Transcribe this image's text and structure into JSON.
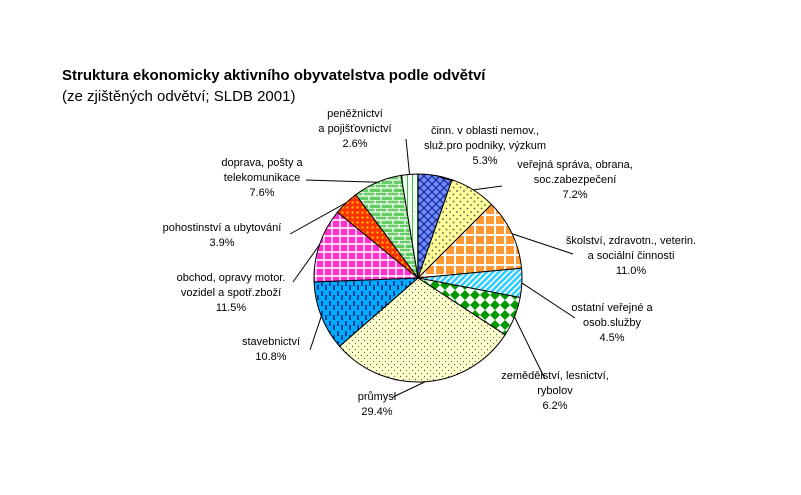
{
  "chart_data": {
    "type": "pie",
    "title": "Struktura ekonomicky aktivního obyvatelstva podle odvětví",
    "subtitle": " (ze zjištěných odvětví; SLDB 2001)",
    "slices": [
      {
        "lines": [
          "činn. v oblasti nemov.,",
          "služ.pro podniky, výzkum"
        ],
        "value": 5.3,
        "value_label": "5.3%",
        "color": "#6f8cff",
        "pattern": "crosshatch"
      },
      {
        "lines": [
          "veřejná správa, obrana,",
          "soc.zabezpečení"
        ],
        "value": 7.2,
        "value_label": "7.2%",
        "color": "#ffff99",
        "pattern": "dots"
      },
      {
        "lines": [
          "školství, zdravotn., veterin.",
          "a sociální činnosti"
        ],
        "value": 11.0,
        "value_label": "11.0%",
        "color": "#ff9933",
        "pattern": "grid"
      },
      {
        "lines": [
          "ostatní veřejné a",
          "osob.služby"
        ],
        "value": 4.5,
        "value_label": "4.5%",
        "color": "#33ccff",
        "pattern": "diagonal"
      },
      {
        "lines": [
          "zemědělství, lesnictví,",
          "rybolov"
        ],
        "value": 6.2,
        "value_label": "6.2%",
        "color": "#009900",
        "pattern": "checker"
      },
      {
        "lines": [
          "průmysl"
        ],
        "value": 29.4,
        "value_label": "29.4%",
        "color": "#ffffcc",
        "pattern": "speckle"
      },
      {
        "lines": [
          "stavebnictví"
        ],
        "value": 10.8,
        "value_label": "10.8%",
        "color": "#00aaff",
        "pattern": "dashes"
      },
      {
        "lines": [
          "obchod, opravy motor.",
          "vozidel a spotř.zboží"
        ],
        "value": 11.5,
        "value_label": "11.5%",
        "color": "#ff33cc",
        "pattern": "grid"
      },
      {
        "lines": [
          "pohostinství a ubytování"
        ],
        "value": 3.9,
        "value_label": "3.9%",
        "color": "#ff3300",
        "pattern": "dots-dense"
      },
      {
        "lines": [
          "doprava, pošty a",
          "telekomunikace"
        ],
        "value": 7.6,
        "value_label": "7.6%",
        "color": "#66cc66",
        "pattern": "bricks"
      },
      {
        "lines": [
          "peněžnictví",
          "a pojišťovnictví"
        ],
        "value": 2.6,
        "value_label": "2.6%",
        "color": "#e8f8e8",
        "pattern": "lines"
      }
    ]
  }
}
